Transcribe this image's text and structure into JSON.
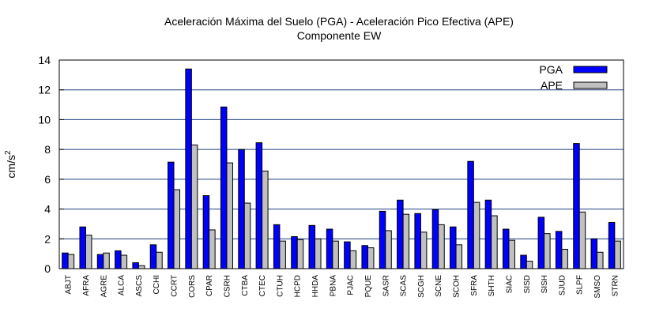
{
  "chart_data": {
    "type": "bar",
    "title": "Aceleración Máxima del Suelo (PGA) -  Aceleración Pico Efectiva (APE)",
    "subtitle": "Componente EW",
    "ylabel_base": "cm/s",
    "ylabel_sup": "2",
    "ylim": [
      0,
      14
    ],
    "yticks": [
      0,
      2,
      4,
      6,
      8,
      10,
      12,
      14
    ],
    "grid": true,
    "legend_position": "top-right",
    "categories": [
      "ABJT",
      "AFRA",
      "AGRE",
      "ALCA",
      "ASCS",
      "CCHI",
      "CCRT",
      "CORS",
      "CPAR",
      "CSRH",
      "CTBA",
      "CTEC",
      "CTUH",
      "HCPD",
      "HHDA",
      "PBNA",
      "PJAC",
      "PQUE",
      "SASR",
      "SCAS",
      "SCGH",
      "SCNE",
      "SCOH",
      "SFRA",
      "SHTH",
      "SIAC",
      "SISD",
      "SISH",
      "SJUD",
      "SLPF",
      "SMSO",
      "STRN"
    ],
    "series": [
      {
        "name": "PGA",
        "color": "#0000ff",
        "values": [
          1.05,
          2.8,
          0.95,
          1.2,
          0.4,
          1.6,
          7.15,
          13.4,
          4.9,
          10.85,
          8.0,
          8.45,
          2.95,
          2.15,
          2.9,
          2.65,
          1.8,
          1.55,
          3.85,
          4.6,
          3.7,
          3.95,
          2.8,
          7.2,
          4.6,
          2.65,
          0.9,
          3.45,
          2.5,
          8.4,
          2.0,
          3.1
        ]
      },
      {
        "name": "APE",
        "color": "#c0c0c0",
        "values": [
          0.95,
          2.25,
          1.05,
          0.9,
          0.2,
          1.1,
          5.3,
          8.3,
          2.6,
          7.1,
          4.4,
          6.55,
          1.85,
          1.95,
          2.0,
          1.85,
          1.2,
          1.4,
          2.55,
          3.65,
          2.45,
          2.95,
          1.6,
          4.45,
          3.55,
          1.9,
          0.5,
          2.35,
          1.3,
          3.8,
          1.1,
          1.85
        ]
      }
    ]
  }
}
